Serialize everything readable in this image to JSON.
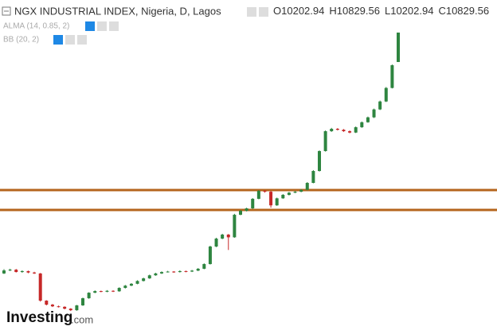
{
  "chart_data": {
    "type": "candlestick",
    "title": "NGX INDUSTRIAL INDEX, Nigeria, D, Lagos",
    "ohlc_prefixes": [
      "O",
      "H",
      "L",
      "C"
    ],
    "indicators": [
      "ALMA (14, 0.85, 2)",
      "BB (20, 2)"
    ],
    "watermark": [
      "Investing",
      ".com"
    ],
    "ylim": [
      4580,
      11015
    ],
    "up_color": "#2e8540",
    "down_color": "#c62828",
    "hline_color": "#b5651d",
    "hlines": [
      7475,
      7052
    ],
    "open": [
      5700,
      5764,
      5780,
      5731,
      5750,
      5720,
      5700,
      5121,
      5036,
      5000,
      4990,
      4950,
      4917,
      5020,
      5172,
      5290,
      5324,
      5310,
      5330,
      5320,
      5392,
      5440,
      5480,
      5540,
      5595,
      5660,
      5700,
      5730,
      5740,
      5730,
      5750,
      5740,
      5760,
      5800,
      5900,
      6273,
      6442,
      6527,
      6470,
      6950,
      7035,
      7086,
      7289,
      7458,
      7440,
      7150,
      7300,
      7374,
      7420,
      7440,
      7480,
      7628,
      7882,
      8306,
      8729,
      8780,
      8760,
      8729,
      8700,
      8814,
      8920,
      9024,
      9193,
      9362,
      9650,
      10202.94
    ],
    "high": [
      5790,
      5800,
      5795,
      5765,
      5760,
      5735,
      5710,
      5130,
      5050,
      5015,
      5000,
      4960,
      5030,
      5185,
      5300,
      5340,
      5335,
      5345,
      5340,
      5405,
      5455,
      5495,
      5555,
      5610,
      5675,
      5715,
      5745,
      5755,
      5750,
      5765,
      5760,
      5775,
      5815,
      5915,
      6290,
      6460,
      6545,
      6540,
      6970,
      7050,
      7100,
      7305,
      7475,
      7475,
      7460,
      7315,
      7390,
      7435,
      7455,
      7495,
      7645,
      7900,
      8320,
      8745,
      8800,
      8795,
      8775,
      8745,
      8830,
      8935,
      9040,
      9210,
      9380,
      9670,
      10150,
      10829.56
    ],
    "low": [
      5690,
      5750,
      5720,
      5715,
      5705,
      5690,
      5100,
      5020,
      4985,
      4975,
      4935,
      4900,
      4905,
      5010,
      5160,
      5280,
      5300,
      5300,
      5305,
      5310,
      5380,
      5430,
      5470,
      5530,
      5585,
      5650,
      5690,
      5720,
      5715,
      5720,
      5725,
      5730,
      5750,
      5790,
      5890,
      6260,
      6430,
      6200,
      6460,
      6940,
      7020,
      7075,
      7280,
      7420,
      7100,
      7140,
      7290,
      7360,
      7410,
      7430,
      7470,
      7620,
      7870,
      8295,
      8715,
      8745,
      8715,
      8685,
      8690,
      8800,
      8910,
      9010,
      9180,
      9350,
      9640,
      10202.94
    ],
    "close": [
      5764,
      5780,
      5731,
      5750,
      5720,
      5700,
      5121,
      5036,
      5000,
      4990,
      4950,
      4917,
      5020,
      5172,
      5290,
      5324,
      5310,
      5330,
      5320,
      5392,
      5440,
      5480,
      5540,
      5595,
      5660,
      5700,
      5730,
      5740,
      5730,
      5750,
      5740,
      5760,
      5800,
      5900,
      6273,
      6442,
      6527,
      6470,
      6950,
      7035,
      7086,
      7289,
      7458,
      7440,
      7150,
      7300,
      7374,
      7420,
      7440,
      7480,
      7628,
      7882,
      8306,
      8729,
      8780,
      8760,
      8729,
      8700,
      8814,
      8920,
      9024,
      9193,
      9362,
      9650,
      10134,
      10829.56
    ]
  }
}
